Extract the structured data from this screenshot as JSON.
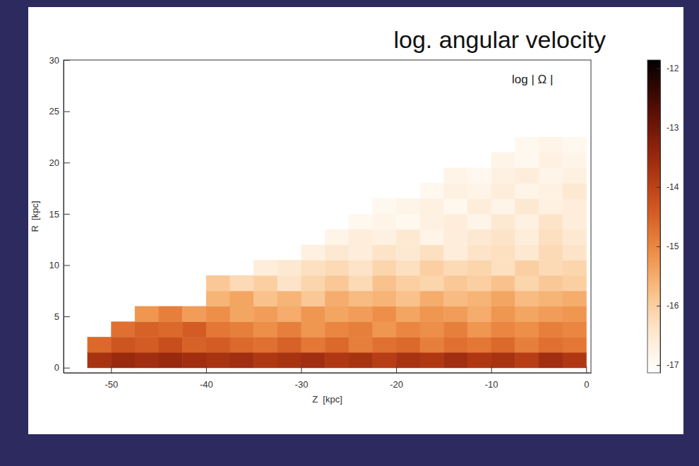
{
  "chart_data": {
    "type": "heatmap",
    "title": "log. angular velocity",
    "annotation": "log | Ω |",
    "x_label": "Z  [kpc]",
    "y_label": "R  [kpc]",
    "xlim": [
      -55,
      0.5
    ],
    "xticks": [
      -50,
      -40,
      -30,
      -20,
      -10,
      0
    ],
    "ylim": [
      -0.5,
      30
    ],
    "yticks": [
      0,
      5,
      10,
      15,
      20,
      25,
      30
    ],
    "x_bins": [
      -55,
      -52.5,
      -50,
      -47.5,
      -45,
      -42.5,
      -40,
      -37.5,
      -35,
      -32.5,
      -30,
      -27.5,
      -25,
      -22.5,
      -20,
      -17.5,
      -15,
      -12.5,
      -10,
      -7.5,
      -5,
      -2.5,
      0
    ],
    "y_bins": [
      0,
      1.5,
      3,
      4.5,
      6,
      7.5,
      9,
      10.5,
      12,
      13.5,
      15,
      16.5,
      18,
      19.5,
      21,
      22.5
    ],
    "cells": [
      [
        null,
        -13.7,
        -13.5,
        -13.6,
        -13.5,
        -13.6,
        -13.7,
        -13.6,
        -13.8,
        -13.7,
        -13.6,
        -13.8,
        -13.7,
        -13.9,
        -13.7,
        -13.8,
        -13.6,
        -13.8,
        -13.7,
        -13.9,
        -13.6,
        -13.8
      ],
      [
        null,
        -14.6,
        -14.3,
        -14.4,
        -14.2,
        -14.5,
        -14.4,
        -14.6,
        -14.7,
        -14.5,
        -14.8,
        -14.6,
        -14.9,
        -14.7,
        -14.6,
        -14.9,
        -14.7,
        -14.8,
        -14.6,
        -14.9,
        -14.7,
        -14.8
      ],
      [
        null,
        null,
        -14.7,
        -14.5,
        -14.6,
        -14.4,
        -14.8,
        -14.9,
        -15.1,
        -14.9,
        -15.2,
        -15.0,
        -14.9,
        -15.2,
        -15.0,
        -15.1,
        -14.9,
        -15.2,
        -15.0,
        -15.1,
        -14.9,
        -15.0
      ],
      [
        null,
        null,
        null,
        -15.2,
        -14.9,
        -15.3,
        -15.1,
        -15.4,
        -15.3,
        -15.5,
        -15.2,
        -15.4,
        -15.3,
        -15.1,
        -15.4,
        -15.2,
        -15.3,
        -15.5,
        -15.2,
        -15.4,
        -15.3,
        -15.2
      ],
      [
        null,
        null,
        null,
        null,
        null,
        null,
        -15.6,
        -15.4,
        -15.8,
        -15.6,
        -15.9,
        -15.5,
        -15.7,
        -15.6,
        -15.8,
        -15.5,
        -15.7,
        -15.6,
        -15.4,
        -15.7,
        -15.6,
        -15.5
      ],
      [
        null,
        null,
        null,
        null,
        null,
        null,
        -15.9,
        -16.2,
        -16.0,
        -16.4,
        -16.1,
        -15.9,
        -16.2,
        -15.8,
        -16.0,
        -16.1,
        -15.9,
        -16.0,
        -15.8,
        -16.1,
        -15.9,
        -16.0
      ],
      [
        null,
        null,
        null,
        null,
        null,
        null,
        null,
        null,
        -16.6,
        -16.5,
        -16.3,
        -16.2,
        -16.4,
        -16.1,
        -16.3,
        -16.0,
        -16.2,
        -16.1,
        -16.3,
        -16.0,
        -16.2,
        -16.1
      ],
      [
        null,
        null,
        null,
        null,
        null,
        null,
        null,
        null,
        null,
        null,
        -16.7,
        -16.5,
        -16.6,
        -16.4,
        -16.5,
        -16.3,
        -16.6,
        -16.4,
        -16.3,
        -16.5,
        -16.2,
        -16.4
      ],
      [
        null,
        null,
        null,
        null,
        null,
        null,
        null,
        null,
        null,
        null,
        null,
        -16.8,
        -16.6,
        -16.7,
        -16.5,
        -16.8,
        -16.6,
        -16.5,
        -16.4,
        -16.6,
        -16.3,
        -16.5
      ],
      [
        null,
        null,
        null,
        null,
        null,
        null,
        null,
        null,
        null,
        null,
        null,
        null,
        -16.9,
        -16.8,
        -16.9,
        -16.7,
        -16.6,
        -16.8,
        -16.5,
        -16.7,
        -16.4,
        -16.6
      ],
      [
        null,
        null,
        null,
        null,
        null,
        null,
        null,
        null,
        null,
        null,
        null,
        null,
        null,
        -16.9,
        -16.8,
        -16.7,
        -16.9,
        -16.6,
        -16.8,
        -16.5,
        -16.7,
        -16.6
      ],
      [
        null,
        null,
        null,
        null,
        null,
        null,
        null,
        null,
        null,
        null,
        null,
        null,
        null,
        null,
        null,
        -16.9,
        -16.7,
        -16.8,
        -16.6,
        -16.8,
        -16.7,
        -16.5
      ],
      [
        null,
        null,
        null,
        null,
        null,
        null,
        null,
        null,
        null,
        null,
        null,
        null,
        null,
        null,
        null,
        null,
        -16.8,
        -16.9,
        -16.7,
        -16.6,
        -16.8,
        -16.7
      ],
      [
        null,
        null,
        null,
        null,
        null,
        null,
        null,
        null,
        null,
        null,
        null,
        null,
        null,
        null,
        null,
        null,
        null,
        null,
        -16.8,
        -16.9,
        -16.7,
        -16.8
      ],
      [
        null,
        null,
        null,
        null,
        null,
        null,
        null,
        null,
        null,
        null,
        null,
        null,
        null,
        null,
        null,
        null,
        null,
        null,
        null,
        -16.9,
        -16.8,
        -16.9
      ]
    ],
    "colorbar": {
      "range": [
        -17.13,
        -11.86
      ],
      "ticks": [
        -17,
        -16,
        -15,
        -14,
        -13,
        -12
      ]
    }
  }
}
